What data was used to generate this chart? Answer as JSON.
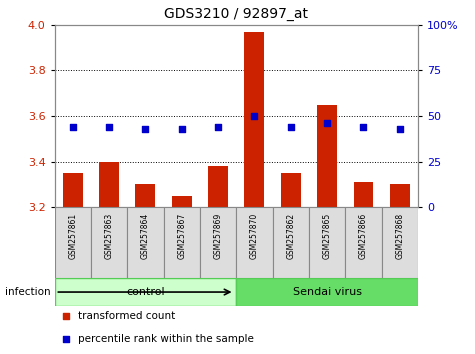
{
  "title": "GDS3210 / 92897_at",
  "samples": [
    "GSM257861",
    "GSM257863",
    "GSM257864",
    "GSM257867",
    "GSM257869",
    "GSM257870",
    "GSM257862",
    "GSM257865",
    "GSM257866",
    "GSM257868"
  ],
  "bar_values": [
    3.35,
    3.4,
    3.3,
    3.25,
    3.38,
    3.97,
    3.35,
    3.65,
    3.31,
    3.3
  ],
  "dot_values": [
    44,
    44,
    43,
    43,
    44,
    50,
    44,
    46,
    44,
    43
  ],
  "ylim_left": [
    3.2,
    4.0
  ],
  "ylim_right": [
    0,
    100
  ],
  "yticks_left": [
    3.2,
    3.4,
    3.6,
    3.8,
    4.0
  ],
  "yticks_right": [
    0,
    25,
    50,
    75,
    100
  ],
  "ytick_labels_right": [
    "0",
    "25",
    "50",
    "75",
    "100%"
  ],
  "groups": [
    {
      "label": "control",
      "start": 0,
      "end": 5,
      "color": "#ccffcc",
      "edge": "#55cc55"
    },
    {
      "label": "Sendai virus",
      "start": 5,
      "end": 10,
      "color": "#66dd66",
      "edge": "#55cc55"
    }
  ],
  "infection_label": "infection",
  "bar_color": "#cc2200",
  "dot_color": "#0000cc",
  "bar_width": 0.55,
  "legend_entries": [
    {
      "label": "transformed count",
      "color": "#cc2200"
    },
    {
      "label": "percentile rank within the sample",
      "color": "#0000cc"
    }
  ],
  "grid_dotted_at": [
    3.4,
    3.6,
    3.8
  ],
  "bg_color": "#ffffff",
  "tick_label_color_left": "#cc2200",
  "tick_label_color_right": "#0000cc"
}
